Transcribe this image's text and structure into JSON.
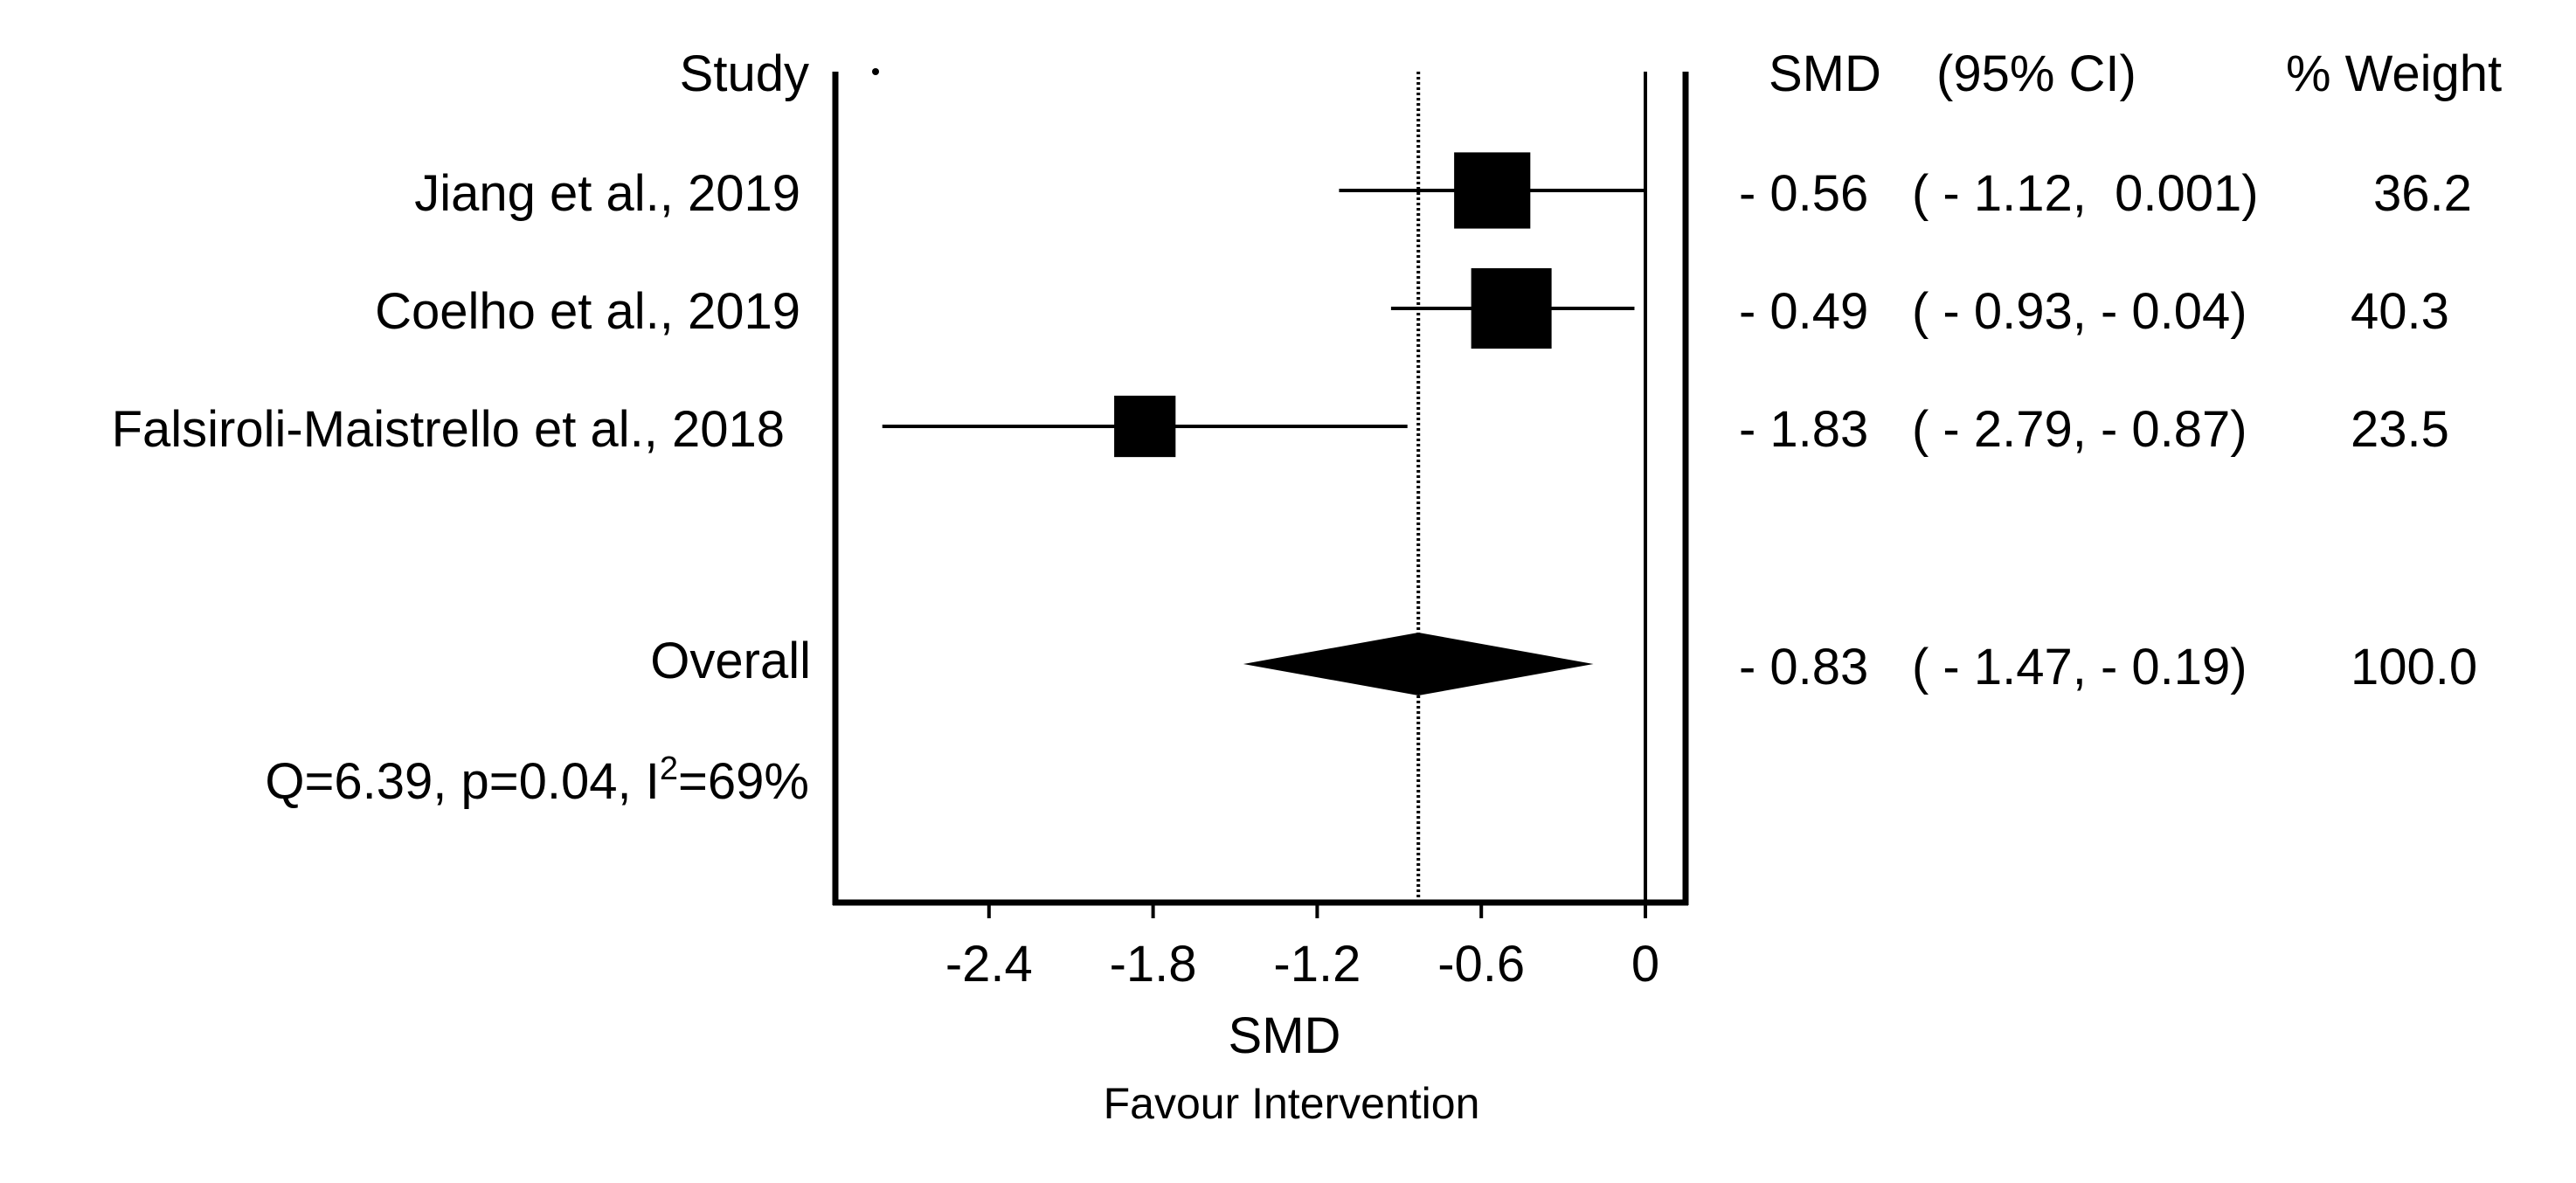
{
  "chart_data": {
    "type": "forest",
    "header": {
      "study": "Study",
      "smd": "SMD",
      "ci": "(95% CI)",
      "weight": "% Weight"
    },
    "studies": [
      {
        "label": "Jiang et al., 2019",
        "smd": -0.56,
        "lo": -1.12,
        "hi": 0.001,
        "smd_text": "- 0.56",
        "ci_text": "( - 1.12,  0.001)",
        "weight": 36.2,
        "weight_text": "36.2"
      },
      {
        "label": "Coelho et al., 2019",
        "smd": -0.49,
        "lo": -0.93,
        "hi": -0.04,
        "smd_text": "- 0.49",
        "ci_text": "( - 0.93, - 0.04)",
        "weight": 40.3,
        "weight_text": "40.3"
      },
      {
        "label": "Falsiroli-Maistrello et al., 2018",
        "smd": -1.83,
        "lo": -2.79,
        "hi": -0.87,
        "smd_text": "- 1.83",
        "ci_text": "( - 2.79, - 0.87)",
        "weight": 23.5,
        "weight_text": "23.5"
      }
    ],
    "overall": {
      "label": "Overall",
      "smd": -0.83,
      "lo": -1.47,
      "hi": -0.19,
      "smd_text": "- 0.83",
      "ci_text": "( - 1.47, - 0.19)",
      "weight_text": "100.0"
    },
    "heterogeneity": {
      "prefix": "Q=6.39, p=0.04, I",
      "sup": "2",
      "suffix": "=69%",
      "Q": 6.39,
      "p": 0.04,
      "I2_percent": 69
    },
    "x_axis": {
      "label": "SMD",
      "ticks": [
        -2.4,
        -1.8,
        -1.2,
        -0.6,
        0
      ],
      "tick_labels": [
        "-2.4",
        "-1.8",
        "-1.2",
        "-0.6",
        "0"
      ],
      "range": [
        -3.0,
        0.15
      ]
    },
    "null_line": 0,
    "favour_label": "Favour Intervention"
  }
}
